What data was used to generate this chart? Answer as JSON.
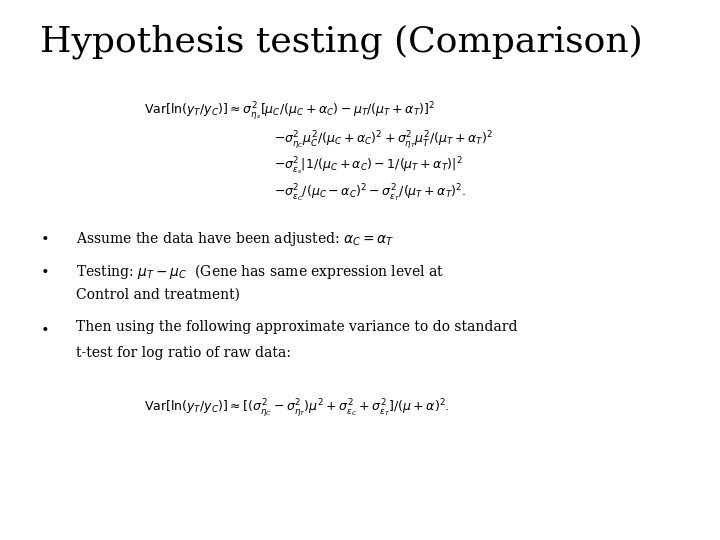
{
  "title": "Hypothesis testing (Comparison)",
  "background_color": "#ffffff",
  "title_fontsize": 26,
  "text_color": "#000000",
  "formula1": "$\\mathrm{Var}[\\ln(y_T/y_C)] \\approx \\sigma_{\\eta_s}^2[\\mu_C/(\\mu_C + \\alpha_C) - \\mu_T/(\\mu_T + \\alpha_T)]^2$",
  "formula2": "$- \\sigma_{\\eta_C}^2\\mu_C^2/(\\mu_C + \\alpha_C)^2 + \\sigma_{\\eta_T}^2\\mu_T^2/(\\mu_T + \\alpha_T)^2$",
  "formula3": "$- \\sigma_{\\varepsilon_s}^2|1/(\\mu_C + \\alpha_C) - 1/(\\mu_T + \\alpha_T)|^2$",
  "formula4": "$- \\sigma_{\\varepsilon_C}^2/(\\mu_C - \\alpha_C)^2 - \\sigma_{\\varepsilon_T}^2/(\\mu_T + \\alpha_T)^2.$",
  "bullet1_text": "Assume the data have been adjusted: $\\alpha_C = \\alpha_T$",
  "bullet2_text1": "Testing: $\\mu_T - \\mu_C$  (Gene has same expression level at",
  "bullet2_text2": "Control and treatment)",
  "bullet3_text1": "Then using the following approximate variance to do standard",
  "bullet3_text2": "t-test for log ratio of raw data:",
  "formula5": "$\\mathrm{Var}[\\ln(y_T/y_C)] \\approx [(\\sigma_{\\eta_C}^2 - \\sigma_{\\eta_T}^2)\\mu^2 + \\sigma_{\\varepsilon_C}^2 + \\sigma_{\\varepsilon_T}^2]/(\\mu + \\alpha)^2.$",
  "fig_width": 7.2,
  "fig_height": 5.4,
  "dpi": 100
}
